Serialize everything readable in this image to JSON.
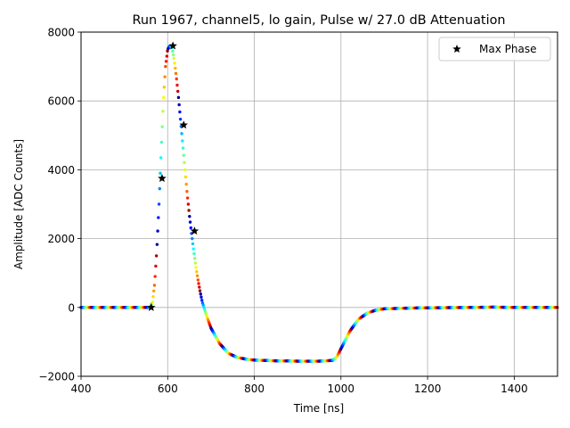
{
  "chart_data": {
    "type": "scatter",
    "title": "Run 1967, channel5, lo gain, Pulse w/ 27.0 dB Attenuation",
    "xlabel": "Time [ns]",
    "ylabel": "Amplitude [ADC Counts]",
    "xlim": [
      400,
      1500
    ],
    "ylim": [
      -2000,
      8000
    ],
    "x_ticks": [
      400,
      600,
      800,
      1000,
      1200,
      1400
    ],
    "x_tick_labels": [
      "400",
      "600",
      "800",
      "1000",
      "1200",
      "1400"
    ],
    "y_ticks": [
      -2000,
      0,
      2000,
      4000,
      6000,
      8000
    ],
    "y_tick_labels": [
      "−2000",
      "0",
      "2000",
      "4000",
      "6000",
      "8000"
    ],
    "grid": true,
    "legend_position": "upper right",
    "series": [
      {
        "name": "",
        "marker": "dot",
        "colormap": "jet (colour cycles with sampling phase)",
        "x": [
          400,
          500,
          555,
          560,
          565,
          570,
          575,
          580,
          585,
          590,
          595,
          600,
          605,
          610,
          615,
          620,
          625,
          630,
          635,
          640,
          645,
          650,
          655,
          660,
          665,
          670,
          675,
          680,
          690,
          700,
          720,
          740,
          760,
          780,
          800,
          850,
          900,
          950,
          980,
          990,
          1000,
          1020,
          1040,
          1060,
          1080,
          1100,
          1150,
          1200,
          1300,
          1350,
          1400,
          1500
        ],
        "y": [
          0,
          0,
          0,
          20,
          150,
          700,
          1700,
          3000,
          4500,
          6000,
          7000,
          7500,
          7600,
          7550,
          7200,
          6700,
          6100,
          5400,
          4700,
          4000,
          3300,
          2700,
          2150,
          1650,
          1200,
          800,
          450,
          150,
          -250,
          -600,
          -1050,
          -1330,
          -1450,
          -1500,
          -1530,
          -1550,
          -1560,
          -1560,
          -1540,
          -1450,
          -1200,
          -700,
          -350,
          -170,
          -80,
          -40,
          -20,
          -10,
          0,
          10,
          0,
          0
        ]
      },
      {
        "name": "Max Phase",
        "marker": "star",
        "color": "#000000",
        "x": [
          562,
          587,
          612,
          637,
          662
        ],
        "y": [
          0,
          3750,
          7600,
          5300,
          2220
        ]
      }
    ]
  }
}
